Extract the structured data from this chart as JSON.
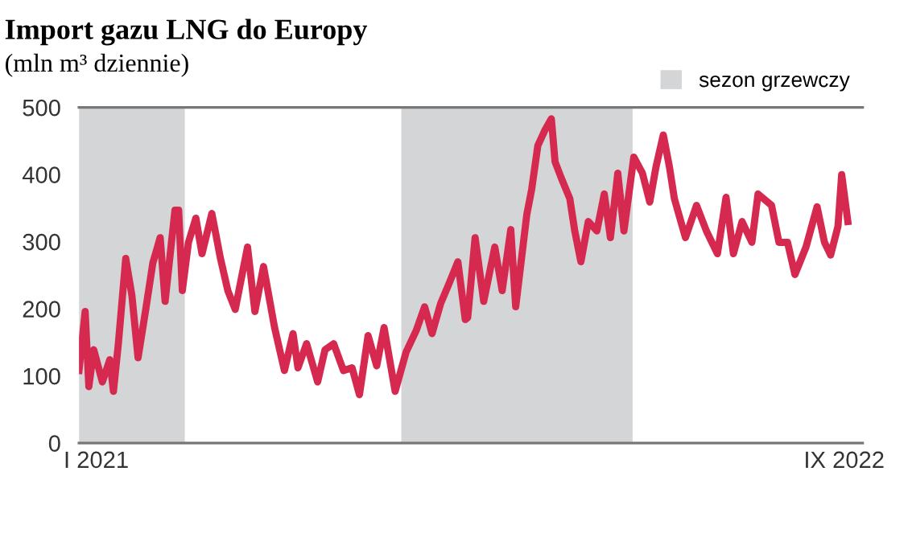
{
  "chart_data": {
    "type": "line",
    "title": "Import gazu LNG do Europy",
    "subtitle": "(mln m³ dziennie)",
    "x": [
      "2021-01-01",
      "2021-01-06",
      "2021-01-09",
      "2021-01-13",
      "2021-01-20",
      "2021-01-26",
      "2021-01-29",
      "2021-02-02",
      "2021-02-08",
      "2021-02-13",
      "2021-02-18",
      "2021-02-24",
      "2021-03-02",
      "2021-03-08",
      "2021-03-12",
      "2021-03-20",
      "2021-03-23",
      "2021-03-26",
      "2021-03-31",
      "2021-04-06",
      "2021-04-11",
      "2021-04-19",
      "2021-04-26",
      "2021-05-02",
      "2021-05-08",
      "2021-05-18",
      "2021-05-24",
      "2021-05-31",
      "2021-06-09",
      "2021-06-17",
      "2021-06-24",
      "2021-06-28",
      "2021-07-05",
      "2021-07-14",
      "2021-07-20",
      "2021-07-27",
      "2021-08-04",
      "2021-08-11",
      "2021-08-17",
      "2021-08-24",
      "2021-08-31",
      "2021-09-06",
      "2021-09-15",
      "2021-09-24",
      "2021-10-02",
      "2021-10-09",
      "2021-10-15",
      "2021-10-22",
      "2021-10-28",
      "2021-11-05",
      "2021-11-11",
      "2021-11-13",
      "2021-11-19",
      "2021-11-26",
      "2021-12-05",
      "2021-12-11",
      "2021-12-18",
      "2021-12-22",
      "2021-12-31",
      "2022-01-04",
      "2022-01-09",
      "2022-01-15",
      "2022-01-20",
      "2022-01-23",
      "2022-01-28",
      "2022-02-04",
      "2022-02-08",
      "2022-02-13",
      "2022-02-19",
      "2022-02-26",
      "2022-03-04",
      "2022-03-09",
      "2022-03-15",
      "2022-03-20",
      "2022-03-28",
      "2022-04-04",
      "2022-04-10",
      "2022-04-15",
      "2022-04-21",
      "2022-04-26",
      "2022-04-30",
      "2022-05-09",
      "2022-05-18",
      "2022-05-26",
      "2022-06-04",
      "2022-06-11",
      "2022-06-17",
      "2022-06-24",
      "2022-07-02",
      "2022-07-07",
      "2022-07-18",
      "2022-07-24",
      "2022-07-31",
      "2022-08-06",
      "2022-08-15",
      "2022-08-24",
      "2022-08-30",
      "2022-09-04",
      "2022-09-10",
      "2022-09-13",
      "2022-09-18"
    ],
    "series": [
      {
        "color": "#d6294f",
        "values": [
          108,
          196,
          84,
          139,
          91,
          124,
          77,
          148,
          275,
          220,
          127,
          196,
          268,
          306,
          211,
          347,
          347,
          227,
          299,
          335,
          282,
          342,
          275,
          227,
          199,
          292,
          196,
          263,
          172,
          108,
          163,
          112,
          148,
          91,
          139,
          148,
          108,
          112,
          72,
          160,
          115,
          172,
          77,
          136,
          167,
          203,
          163,
          208,
          234,
          270,
          184,
          187,
          306,
          211,
          292,
          227,
          318,
          203,
          340,
          378,
          443,
          467,
          483,
          419,
          395,
          364,
          316,
          270,
          330,
          316,
          371,
          306,
          402,
          316,
          426,
          402,
          359,
          411,
          459,
          411,
          364,
          306,
          354,
          316,
          282,
          366,
          282,
          330,
          299,
          371,
          354,
          299,
          299,
          251,
          292,
          352,
          299,
          280,
          323,
          400,
          330
        ]
      }
    ],
    "xlim": [
      "2021-01-01",
      "2022-09-30"
    ],
    "xticks": [
      {
        "value": "2021-01-15",
        "label": "I 2021"
      },
      {
        "value": "2022-09-15",
        "label": "IX 2022"
      }
    ],
    "ylim": [
      0,
      500
    ],
    "yticks": [
      0,
      100,
      200,
      300,
      400,
      500
    ],
    "bands": [
      {
        "axis": "x",
        "from": "2021-01-01",
        "to": "2021-03-28",
        "label": "sezon grzewczy",
        "color": "#d3d5d7"
      },
      {
        "axis": "x",
        "from": "2021-09-20",
        "to": "2022-03-27",
        "color": "#d3d5d7"
      }
    ],
    "legend": "top right",
    "grid": false,
    "marker": "none",
    "line_style": "solid"
  }
}
